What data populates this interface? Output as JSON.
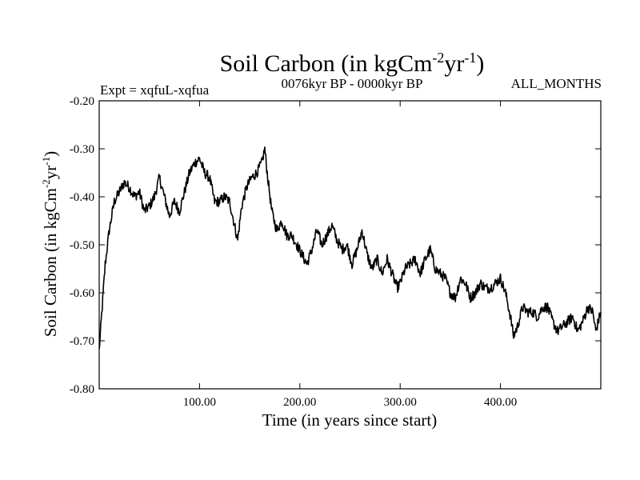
{
  "chart_data": {
    "type": "line",
    "title_main": "Soil Carbon (in kgCm",
    "title_sup1": "-2",
    "title_mid": "yr",
    "title_sup2": "-1",
    "title_end": ")",
    "left_label": "Expt = xqfuL-xqfua",
    "center_label": "0076kyr BP - 0000kyr BP",
    "right_label": "ALL_MONTHS",
    "xlabel": "Time (in years since start)",
    "ylabel_main": "Soil Carbon (in kgCm",
    "ylabel_sup1": "-2",
    "ylabel_mid": "yr",
    "ylabel_sup2": "-1",
    "ylabel_end": ")",
    "xlim": [
      0,
      500
    ],
    "ylim": [
      -0.8,
      -0.2
    ],
    "xticks": [
      100,
      200,
      300,
      400
    ],
    "xtick_labels": [
      "100.00",
      "200.00",
      "300.00",
      "400.00"
    ],
    "yticks": [
      -0.2,
      -0.3,
      -0.4,
      -0.5,
      -0.6,
      -0.7,
      -0.8
    ],
    "ytick_labels": [
      "-0.20",
      "-0.30",
      "-0.40",
      "-0.50",
      "-0.60",
      "-0.70",
      "-0.80"
    ],
    "x": [
      0,
      3,
      6,
      10,
      15,
      20,
      25,
      30,
      35,
      40,
      45,
      50,
      55,
      60,
      65,
      70,
      75,
      80,
      85,
      90,
      95,
      100,
      105,
      110,
      115,
      120,
      125,
      130,
      135,
      138,
      142,
      147,
      152,
      157,
      162,
      165,
      168,
      172,
      177,
      182,
      187,
      192,
      197,
      202,
      207,
      212,
      217,
      222,
      227,
      232,
      237,
      242,
      247,
      252,
      257,
      262,
      267,
      272,
      277,
      282,
      287,
      292,
      297,
      300,
      305,
      310,
      315,
      320,
      325,
      330,
      335,
      340,
      345,
      350,
      355,
      360,
      365,
      370,
      375,
      380,
      385,
      390,
      395,
      400,
      405,
      410,
      413,
      417,
      422,
      427,
      432,
      437,
      442,
      447,
      452,
      457,
      462,
      467,
      472,
      477,
      482,
      487,
      492,
      495,
      500
    ],
    "y": [
      -0.72,
      -0.63,
      -0.54,
      -0.47,
      -0.41,
      -0.39,
      -0.37,
      -0.38,
      -0.4,
      -0.39,
      -0.43,
      -0.42,
      -0.4,
      -0.36,
      -0.4,
      -0.44,
      -0.41,
      -0.43,
      -0.39,
      -0.35,
      -0.33,
      -0.32,
      -0.35,
      -0.36,
      -0.41,
      -0.41,
      -0.4,
      -0.41,
      -0.46,
      -0.49,
      -0.42,
      -0.38,
      -0.36,
      -0.35,
      -0.33,
      -0.3,
      -0.36,
      -0.43,
      -0.47,
      -0.45,
      -0.48,
      -0.48,
      -0.5,
      -0.52,
      -0.54,
      -0.51,
      -0.47,
      -0.5,
      -0.48,
      -0.46,
      -0.49,
      -0.51,
      -0.5,
      -0.54,
      -0.51,
      -0.47,
      -0.52,
      -0.55,
      -0.53,
      -0.56,
      -0.53,
      -0.56,
      -0.59,
      -0.58,
      -0.55,
      -0.54,
      -0.53,
      -0.56,
      -0.53,
      -0.51,
      -0.55,
      -0.56,
      -0.57,
      -0.6,
      -0.61,
      -0.57,
      -0.58,
      -0.61,
      -0.6,
      -0.58,
      -0.59,
      -0.59,
      -0.58,
      -0.57,
      -0.6,
      -0.65,
      -0.69,
      -0.67,
      -0.63,
      -0.64,
      -0.64,
      -0.65,
      -0.63,
      -0.63,
      -0.66,
      -0.68,
      -0.67,
      -0.66,
      -0.65,
      -0.68,
      -0.66,
      -0.63,
      -0.64,
      -0.68,
      -0.64
    ]
  }
}
